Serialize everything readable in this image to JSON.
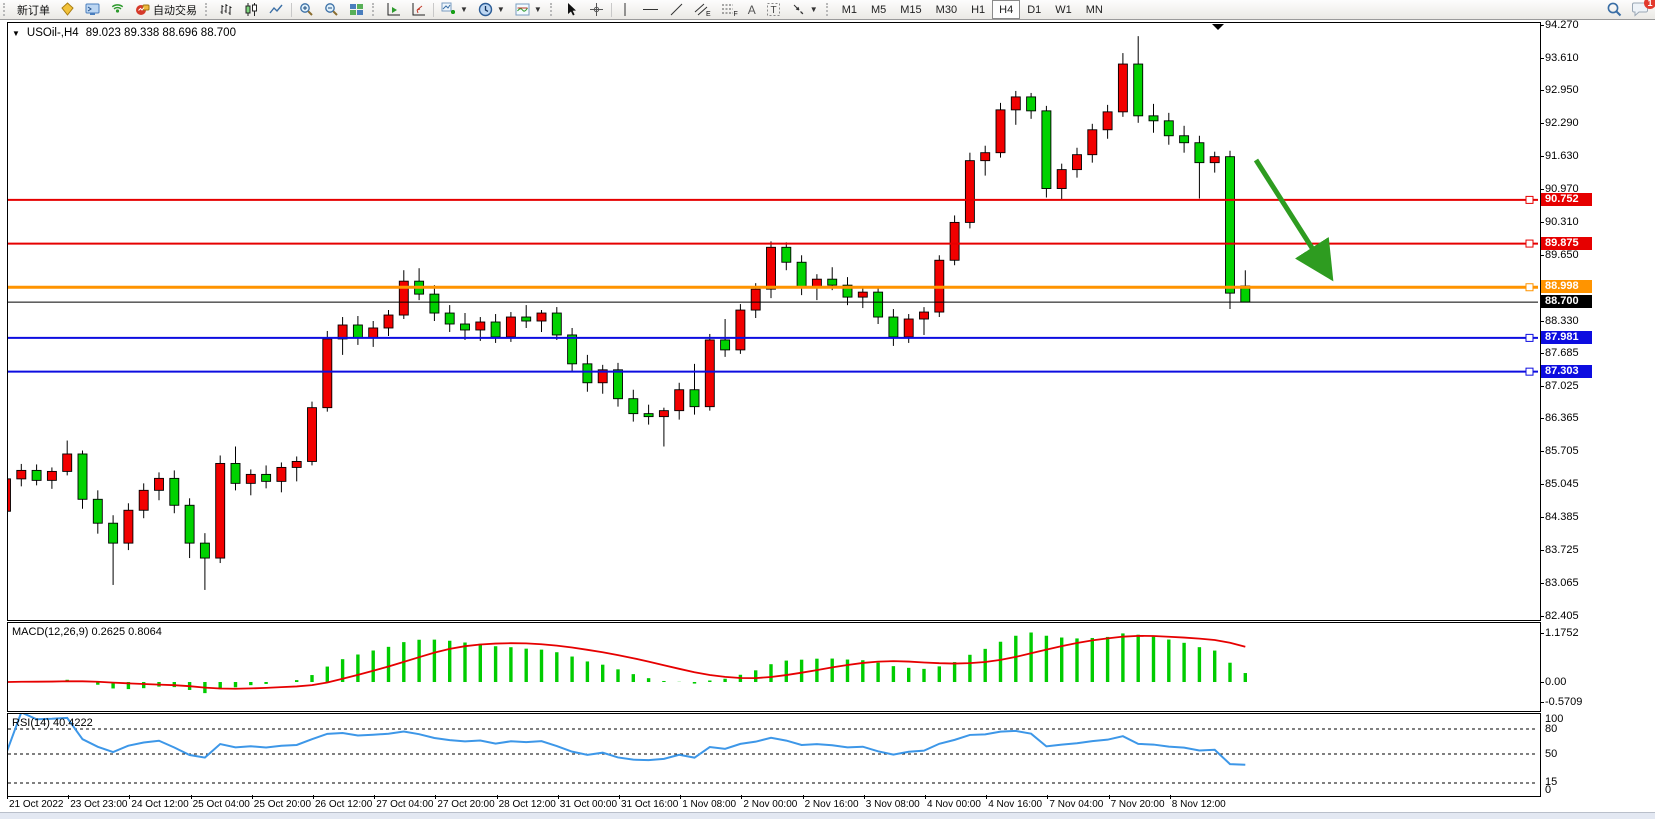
{
  "toolbar": {
    "new_order_label": "新订单",
    "auto_trading_label": "自动交易",
    "timeframes": [
      "M1",
      "M5",
      "M15",
      "M30",
      "H1",
      "H4",
      "D1",
      "W1",
      "MN"
    ],
    "active_timeframe": "H4",
    "chat_badge_count": "1"
  },
  "chart": {
    "symbol_period": "USOil-,H4",
    "ohlc_text": "89.023 89.338 88.696 88.700"
  },
  "price_axis_ticks": [
    "94.270",
    "93.610",
    "92.950",
    "92.290",
    "91.630",
    "90.970",
    "90.310",
    "89.650",
    "88.330",
    "87.685",
    "87.025",
    "86.365",
    "85.705",
    "85.045",
    "84.385",
    "83.725",
    "83.065",
    "82.405"
  ],
  "levels": [
    {
      "label": "90.752",
      "value": 90.752,
      "color": "#e60000",
      "width": 2
    },
    {
      "label": "89.875",
      "value": 89.875,
      "color": "#e60000",
      "width": 2
    },
    {
      "label": "88.998",
      "value": 88.998,
      "color": "#ff9400",
      "width": 3
    },
    {
      "label": "87.981",
      "value": 87.981,
      "color": "#0d0de0",
      "width": 2
    },
    {
      "label": "87.303",
      "value": 87.303,
      "color": "#0d0de0",
      "width": 2
    }
  ],
  "current_price": {
    "label": "88.700",
    "value": 88.7,
    "color": "#000000"
  },
  "macd_panel": {
    "label": "MACD(12,26,9) 0.2625 0.8064",
    "axis_labels": [
      "1.1752",
      "0.00",
      "-0.5709"
    ],
    "histogram_color": "#00cc00",
    "signal_color": "#e60000"
  },
  "rsi_panel": {
    "label": "RSI(14) 40.4222",
    "axis_labels": [
      "100",
      "80",
      "50",
      "15",
      "0"
    ],
    "dashed_levels": [
      80,
      50,
      15
    ],
    "line_color": "#3d97e8"
  },
  "time_axis": [
    "21 Oct 2022",
    "23 Oct 23:00",
    "24 Oct 12:00",
    "25 Oct 04:00",
    "25 Oct 20:00",
    "26 Oct 12:00",
    "27 Oct 04:00",
    "27 Oct 20:00",
    "28 Oct 12:00",
    "31 Oct 00:00",
    "31 Oct 16:00",
    "1 Nov 08:00",
    "2 Nov 00:00",
    "2 Nov 16:00",
    "3 Nov 08:00",
    "4 Nov 00:00",
    "4 Nov 16:00",
    "7 Nov 04:00",
    "7 Nov 20:00",
    "8 Nov 12:00"
  ],
  "chart_data": {
    "type": "candlestick",
    "symbol": "USOil-",
    "period": "H4",
    "price_range": [
      82.405,
      94.27
    ],
    "up_color": "#f20000",
    "down_color": "#00d200",
    "color_convention": "red = bullish, green = bearish",
    "candles": [
      [
        84.5,
        85.32,
        84.35,
        85.15
      ],
      [
        85.15,
        85.45,
        85.0,
        85.32
      ],
      [
        85.32,
        85.44,
        85.02,
        85.12
      ],
      [
        85.12,
        85.38,
        84.95,
        85.3
      ],
      [
        85.3,
        85.92,
        85.22,
        85.65
      ],
      [
        85.65,
        85.72,
        84.55,
        84.74
      ],
      [
        84.74,
        84.92,
        84.05,
        84.26
      ],
      [
        84.26,
        84.42,
        83.02,
        83.86
      ],
      [
        83.86,
        84.66,
        83.72,
        84.52
      ],
      [
        84.52,
        85.06,
        84.36,
        84.92
      ],
      [
        84.92,
        85.28,
        84.72,
        85.16
      ],
      [
        85.16,
        85.32,
        84.46,
        84.62
      ],
      [
        84.62,
        84.76,
        83.56,
        83.86
      ],
      [
        83.86,
        84.06,
        82.92,
        83.56
      ],
      [
        83.56,
        85.62,
        83.46,
        85.46
      ],
      [
        85.46,
        85.8,
        84.92,
        85.06
      ],
      [
        85.06,
        85.34,
        84.82,
        85.24
      ],
      [
        85.24,
        85.42,
        84.96,
        85.1
      ],
      [
        85.1,
        85.48,
        84.88,
        85.38
      ],
      [
        85.38,
        85.6,
        85.1,
        85.5
      ],
      [
        85.5,
        86.7,
        85.42,
        86.58
      ],
      [
        86.58,
        88.12,
        86.5,
        87.96
      ],
      [
        87.96,
        88.4,
        87.64,
        88.24
      ],
      [
        88.24,
        88.42,
        87.84,
        87.98
      ],
      [
        87.98,
        88.32,
        87.8,
        88.18
      ],
      [
        88.18,
        88.54,
        88.02,
        88.44
      ],
      [
        88.44,
        89.34,
        88.36,
        89.12
      ],
      [
        89.12,
        89.38,
        88.74,
        88.86
      ],
      [
        88.86,
        89.04,
        88.32,
        88.48
      ],
      [
        88.48,
        88.64,
        88.1,
        88.26
      ],
      [
        88.26,
        88.48,
        87.94,
        88.14
      ],
      [
        88.14,
        88.4,
        87.92,
        88.3
      ],
      [
        88.3,
        88.46,
        87.88,
        88.0
      ],
      [
        88.0,
        88.5,
        87.9,
        88.4
      ],
      [
        88.4,
        88.64,
        88.18,
        88.32
      ],
      [
        88.32,
        88.54,
        88.1,
        88.48
      ],
      [
        88.48,
        88.6,
        87.94,
        88.04
      ],
      [
        88.04,
        88.18,
        87.3,
        87.46
      ],
      [
        87.46,
        87.64,
        86.9,
        87.08
      ],
      [
        87.08,
        87.44,
        86.86,
        87.34
      ],
      [
        87.34,
        87.48,
        86.6,
        86.76
      ],
      [
        86.76,
        86.94,
        86.3,
        86.46
      ],
      [
        86.46,
        86.64,
        86.24,
        86.4
      ],
      [
        86.4,
        86.58,
        85.8,
        86.52
      ],
      [
        86.52,
        87.08,
        86.34,
        86.94
      ],
      [
        86.94,
        87.46,
        86.44,
        86.6
      ],
      [
        86.6,
        88.06,
        86.52,
        87.94
      ],
      [
        87.94,
        88.36,
        87.6,
        87.74
      ],
      [
        87.74,
        88.66,
        87.66,
        88.54
      ],
      [
        88.54,
        89.08,
        88.38,
        88.96
      ],
      [
        88.96,
        89.92,
        88.78,
        89.8
      ],
      [
        89.8,
        89.9,
        89.34,
        89.5
      ],
      [
        89.5,
        89.64,
        88.84,
        89.0
      ],
      [
        89.0,
        89.26,
        88.74,
        89.16
      ],
      [
        89.16,
        89.4,
        88.94,
        89.04
      ],
      [
        89.04,
        89.2,
        88.64,
        88.8
      ],
      [
        88.8,
        89.0,
        88.58,
        88.9
      ],
      [
        88.9,
        89.0,
        88.26,
        88.4
      ],
      [
        88.4,
        88.56,
        87.82,
        88.0
      ],
      [
        88.0,
        88.46,
        87.88,
        88.36
      ],
      [
        88.36,
        88.6,
        88.04,
        88.5
      ],
      [
        88.5,
        89.64,
        88.4,
        89.54
      ],
      [
        89.54,
        90.44,
        89.44,
        90.3
      ],
      [
        90.3,
        91.7,
        90.18,
        91.54
      ],
      [
        91.54,
        91.84,
        91.24,
        91.7
      ],
      [
        91.7,
        92.7,
        91.6,
        92.56
      ],
      [
        92.56,
        92.94,
        92.26,
        92.82
      ],
      [
        92.82,
        92.9,
        92.38,
        92.54
      ],
      [
        92.54,
        92.64,
        90.8,
        90.98
      ],
      [
        90.98,
        91.48,
        90.74,
        91.36
      ],
      [
        91.36,
        91.8,
        91.2,
        91.66
      ],
      [
        91.66,
        92.28,
        91.5,
        92.16
      ],
      [
        92.16,
        92.66,
        91.98,
        92.52
      ],
      [
        92.52,
        93.7,
        92.42,
        93.48
      ],
      [
        93.48,
        94.04,
        92.3,
        92.44
      ],
      [
        92.44,
        92.68,
        92.1,
        92.34
      ],
      [
        92.34,
        92.5,
        91.86,
        92.04
      ],
      [
        92.04,
        92.24,
        91.7,
        91.9
      ],
      [
        91.9,
        92.04,
        90.78,
        91.5
      ],
      [
        91.5,
        91.72,
        91.3,
        91.62
      ],
      [
        91.62,
        91.74,
        88.56,
        88.88
      ],
      [
        89.023,
        89.338,
        88.696,
        88.7
      ]
    ],
    "horizontal_lines": [
      90.752,
      89.875,
      88.998,
      87.981,
      87.303
    ],
    "annotation_arrow": {
      "from_price": 91.7,
      "to_price": 89.0,
      "color": "#2e9c20"
    },
    "indicators": [
      {
        "name": "MACD",
        "params": [
          12,
          26,
          9
        ],
        "current_values": [
          0.2625,
          0.8064
        ],
        "axis": [
          1.1752,
          0.0,
          -0.5709
        ]
      },
      {
        "name": "RSI",
        "params": [
          14
        ],
        "current_value": 40.4222,
        "levels": [
          80,
          50,
          15
        ],
        "axis_range": [
          0,
          100
        ]
      }
    ]
  }
}
